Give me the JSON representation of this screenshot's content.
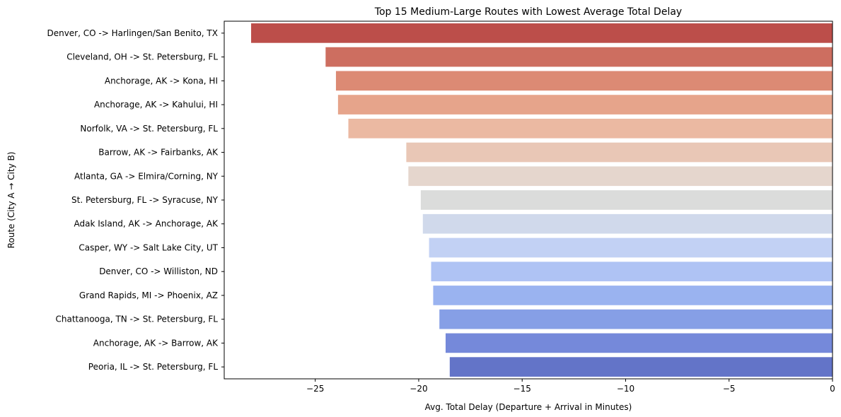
{
  "chart_data": {
    "type": "bar",
    "orientation": "horizontal",
    "title": "Top 15 Medium-Large Routes with Lowest Average Total Delay",
    "xlabel": "Avg. Total Delay (Departure + Arrival in Minutes)",
    "ylabel": "Route (City A → City B)",
    "xlim": [
      -29.4,
      0
    ],
    "xticks": [
      -25,
      -20,
      -15,
      -10,
      -5,
      0
    ],
    "xtick_labels": [
      "−25",
      "−20",
      "−15",
      "−10",
      "−5",
      "0"
    ],
    "grid": false,
    "legend": "none",
    "palette": "coolwarm",
    "categories": [
      "Denver, CO -> Harlingen/San Benito, TX",
      "Cleveland, OH -> St. Petersburg, FL",
      "Anchorage, AK -> Kona, HI",
      "Anchorage, AK -> Kahului, HI",
      "Norfolk, VA -> St. Petersburg, FL",
      "Barrow, AK -> Fairbanks, AK",
      "Atlanta, GA -> Elmira/Corning, NY",
      "St. Petersburg, FL -> Syracuse, NY",
      "Adak Island, AK -> Anchorage, AK",
      "Casper, WY -> Salt Lake City, UT",
      "Denver, CO -> Williston, ND",
      "Grand Rapids, MI -> Phoenix, AZ",
      "Chattanooga, TN -> St. Petersburg, FL",
      "Anchorage, AK -> Barrow, AK",
      "Peoria, IL -> St. Petersburg, FL"
    ],
    "values": [
      -28.1,
      -24.5,
      -24.0,
      -23.9,
      -23.4,
      -20.6,
      -20.5,
      -19.9,
      -19.8,
      -19.5,
      -19.4,
      -19.3,
      -19.0,
      -18.7,
      -18.5
    ],
    "colors": [
      "#bc4e4a",
      "#cd6e60",
      "#dc8a74",
      "#e6a48b",
      "#ebb9a2",
      "#e9c7b6",
      "#e5d6cd",
      "#dbdcdb",
      "#d0d9eb",
      "#c2d1f4",
      "#afc3f4",
      "#9ab3f0",
      "#869fe6",
      "#7589da",
      "#6374c8"
    ]
  }
}
